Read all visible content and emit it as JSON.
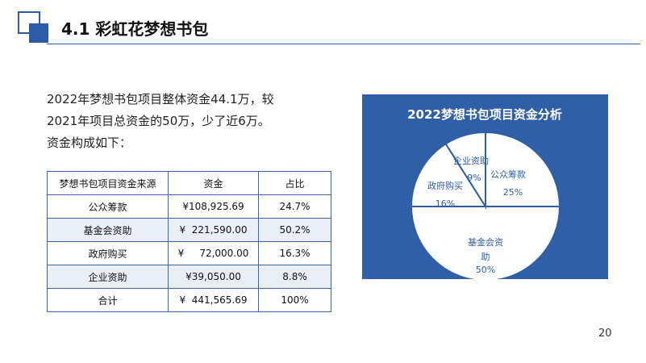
{
  "header": {
    "title": "4.1 彩虹花梦想书包"
  },
  "intro": {
    "lines": [
      "2022年梦想书包项目整体资金44.1万，较",
      "2021年项目总资金的50万，少了近6万。",
      "资金构成如下："
    ]
  },
  "table": {
    "headers": [
      "梦想书包项目资金来源",
      "资金",
      "占比"
    ],
    "rows": [
      [
        "公众筹款",
        "¥108,925.69",
        "24.7%"
      ],
      [
        "基金会资助",
        "¥  221,590.00",
        "50.2%"
      ],
      [
        "政府购买",
        "¥     72,000.00",
        "16.3%"
      ],
      [
        "企业资助",
        "¥39,050.00",
        "8.8%"
      ],
      [
        "合计",
        "¥  441,565.69",
        "100%"
      ]
    ]
  },
  "chart_data": {
    "type": "pie",
    "title": "2022梦想书包项目资金分析",
    "slices": [
      {
        "name": "公众筹款",
        "value": 25,
        "label": "25%"
      },
      {
        "name": "基金会资助",
        "value": 50,
        "label": "50%"
      },
      {
        "name": "政府购买",
        "value": 16,
        "label": "16%"
      },
      {
        "name": "企业资助",
        "value": 9,
        "label": "9%"
      }
    ],
    "colors": {
      "panel": "#2f5fa6",
      "slice": "#ffffff",
      "text": "#2f5fa6"
    }
  },
  "page": {
    "number": "20"
  }
}
